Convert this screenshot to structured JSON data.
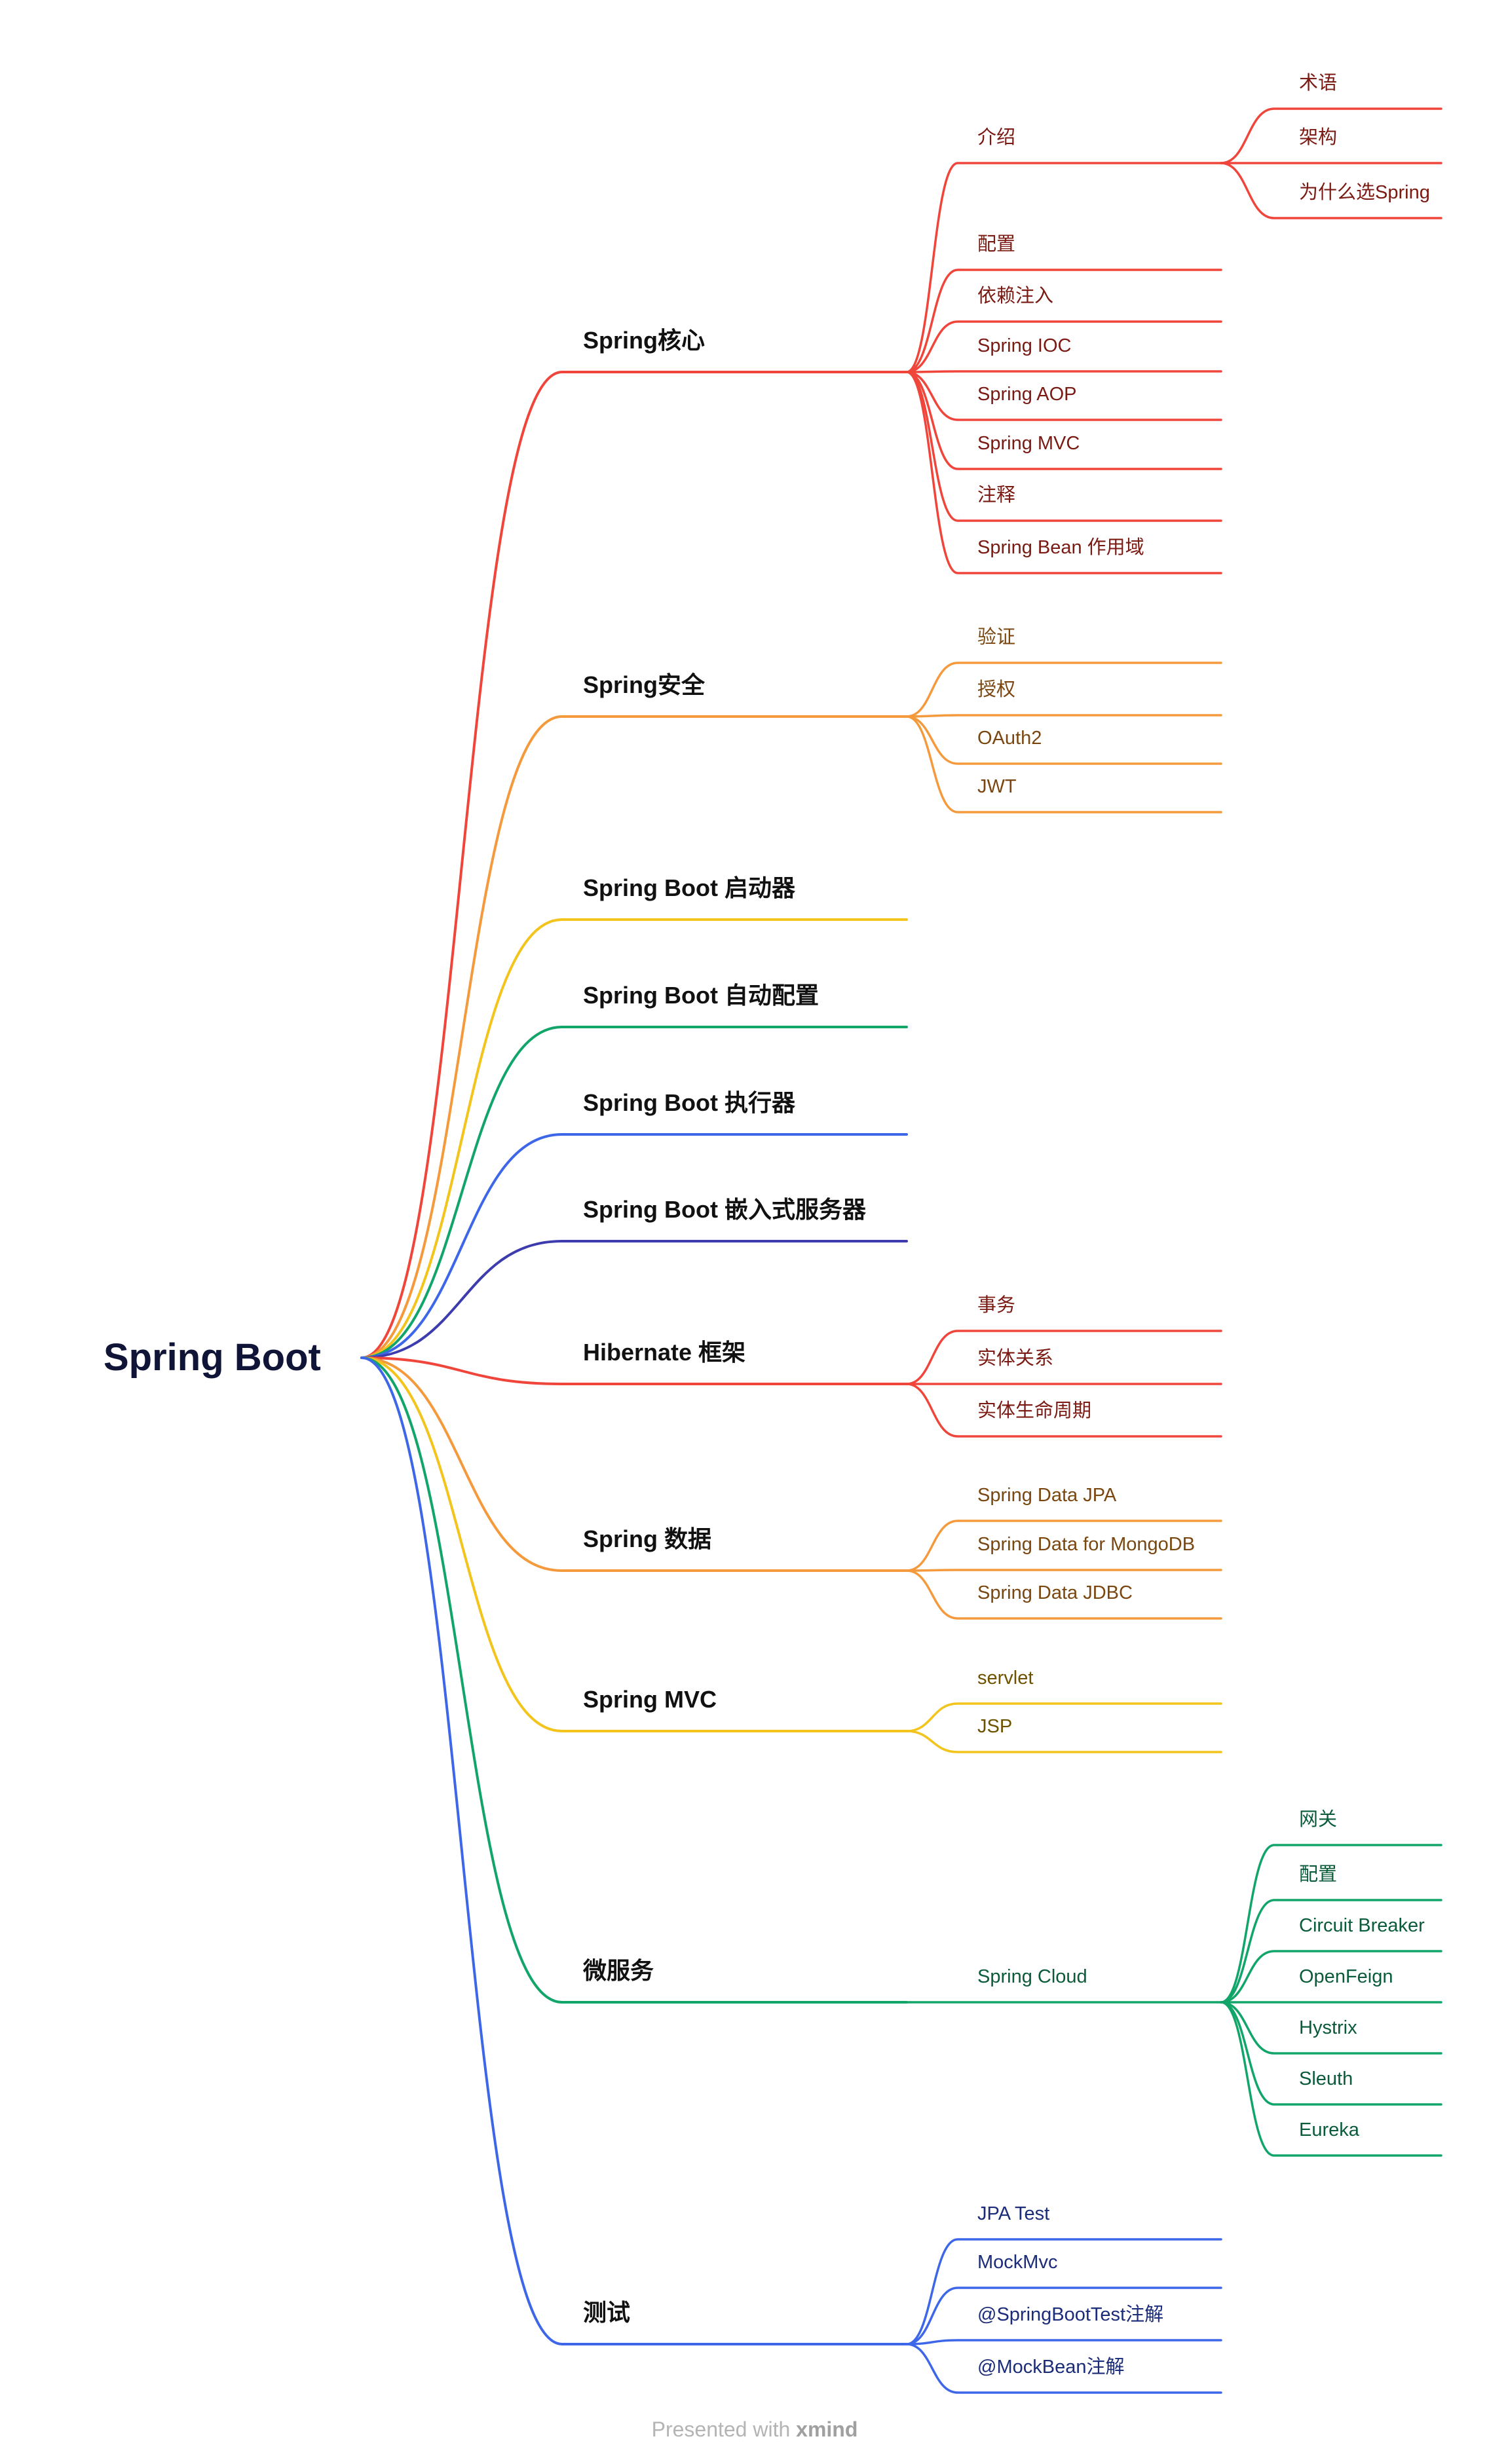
{
  "title": "Spring Boot",
  "colors": {
    "red": "#f0453a",
    "orange": "#f59a3c",
    "yellow": "#f2c41c",
    "green": "#12a56a",
    "blue": "#3d67e8",
    "indigo": "#3c3caf",
    "red_text": "#7a1a12",
    "orange_text": "#7a4710",
    "yellow_text": "#6e5200",
    "green_text": "#0a5b3a",
    "blue_text": "#1b2c7a"
  },
  "branches": [
    {
      "label": "Spring核心",
      "color": "red",
      "children": [
        {
          "label": "介绍",
          "children": [
            {
              "label": "术语"
            },
            {
              "label": "架构"
            },
            {
              "label": "为什么选Spring"
            }
          ]
        },
        {
          "label": "配置"
        },
        {
          "label": "依赖注入"
        },
        {
          "label": "Spring IOC"
        },
        {
          "label": "Spring AOP"
        },
        {
          "label": "Spring MVC"
        },
        {
          "label": "注释"
        },
        {
          "label": "Spring Bean 作用域"
        }
      ]
    },
    {
      "label": "Spring安全",
      "color": "orange",
      "children": [
        {
          "label": "验证"
        },
        {
          "label": "授权"
        },
        {
          "label": "OAuth2"
        },
        {
          "label": "JWT"
        }
      ]
    },
    {
      "label": "Spring Boot 启动器",
      "color": "yellow",
      "children": []
    },
    {
      "label": "Spring Boot 自动配置",
      "color": "green",
      "children": []
    },
    {
      "label": "Spring Boot 执行器",
      "color": "blue",
      "children": []
    },
    {
      "label": "Spring Boot 嵌入式服务器",
      "color": "indigo",
      "children": []
    },
    {
      "label": "Hibernate 框架",
      "color": "red",
      "children": [
        {
          "label": "事务"
        },
        {
          "label": "实体关系"
        },
        {
          "label": "实体生命周期"
        }
      ]
    },
    {
      "label": "Spring 数据",
      "color": "orange",
      "children": [
        {
          "label": "Spring Data JPA"
        },
        {
          "label": "Spring Data for MongoDB"
        },
        {
          "label": "Spring Data JDBC"
        }
      ]
    },
    {
      "label": "Spring MVC",
      "color": "yellow",
      "children": [
        {
          "label": "servlet"
        },
        {
          "label": "JSP"
        }
      ]
    },
    {
      "label": "微服务",
      "color": "green",
      "children": [
        {
          "label": "Spring Cloud",
          "children": [
            {
              "label": "网关"
            },
            {
              "label": "配置"
            },
            {
              "label": "Circuit Breaker"
            },
            {
              "label": "OpenFeign"
            },
            {
              "label": "Hystrix"
            },
            {
              "label": "Sleuth"
            },
            {
              "label": "Eureka"
            }
          ]
        }
      ]
    },
    {
      "label": "测试",
      "color": "blue",
      "children": [
        {
          "label": "JPA Test"
        },
        {
          "label": "MockMvc"
        },
        {
          "label": "@SpringBootTest注解"
        },
        {
          "label": "@MockBean注解"
        }
      ]
    }
  ],
  "footer": {
    "text": "Presented with",
    "brand": "xmind"
  }
}
